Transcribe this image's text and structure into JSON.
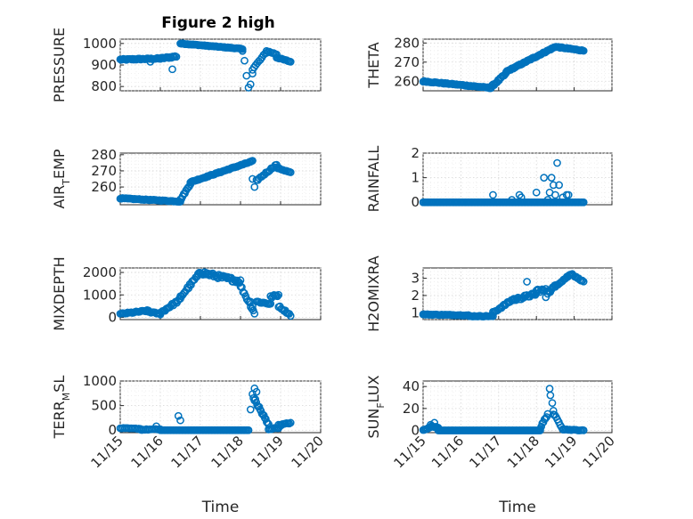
{
  "figure_title": "Figure 2 high",
  "x_tick_labels": [
    "11/15",
    "11/16",
    "11/17",
    "11/18",
    "11/19",
    "11/20"
  ],
  "colors": {
    "marker": "#0072bd",
    "axes": "#262626",
    "grid": "#d4d4d4"
  },
  "chart_data": [
    {
      "type": "scatter",
      "panel": "top-left",
      "ylabel": {
        "main": "PRESSURE",
        "sub": "",
        "tail": ""
      },
      "xlabel": "",
      "xlim": [
        0,
        5
      ],
      "ylim": [
        780,
        1020
      ],
      "yticks": [
        800,
        900,
        1000
      ],
      "ytick_labels": [
        "800",
        "900",
        "1000"
      ],
      "segments": [
        {
          "x0": 0.0,
          "x1": 1.0,
          "y0": 925,
          "y1": 930,
          "n": 40,
          "jitter": 6
        },
        {
          "x0": 1.0,
          "x1": 1.4,
          "y0": 930,
          "y1": 940,
          "n": 14,
          "jitter": 8
        },
        {
          "x0": 1.5,
          "x1": 3.05,
          "y0": 1000,
          "y1": 975,
          "n": 70,
          "jitter": 3
        },
        {
          "x0": 3.3,
          "x1": 3.65,
          "y0": 880,
          "y1": 960,
          "n": 10,
          "jitter": 10
        },
        {
          "x0": 3.65,
          "x1": 3.9,
          "y0": 965,
          "y1": 950,
          "n": 8,
          "jitter": 5
        },
        {
          "x0": 3.9,
          "x1": 4.25,
          "y0": 935,
          "y1": 915,
          "n": 12,
          "jitter": 4
        }
      ],
      "points": [
        {
          "x": 1.3,
          "y": 880
        },
        {
          "x": 0.75,
          "y": 915
        },
        {
          "x": 3.05,
          "y": 965
        },
        {
          "x": 3.1,
          "y": 920
        },
        {
          "x": 3.15,
          "y": 850
        },
        {
          "x": 3.2,
          "y": 795
        },
        {
          "x": 3.25,
          "y": 810
        },
        {
          "x": 3.3,
          "y": 860
        }
      ]
    },
    {
      "type": "scatter",
      "panel": "top-right",
      "ylabel": {
        "main": "THETA",
        "sub": "",
        "tail": ""
      },
      "xlabel": "",
      "xlim": [
        0,
        5
      ],
      "ylim": [
        255,
        282
      ],
      "yticks": [
        260,
        270,
        280
      ],
      "ytick_labels": [
        "260",
        "270",
        "280"
      ],
      "segments": [
        {
          "x0": 0.0,
          "x1": 1.8,
          "y0": 260,
          "y1": 256.5,
          "n": 60,
          "jitter": 0.5
        },
        {
          "x0": 1.8,
          "x1": 2.2,
          "y0": 257,
          "y1": 264,
          "n": 16,
          "jitter": 1
        },
        {
          "x0": 2.2,
          "x1": 3.5,
          "y0": 265,
          "y1": 278,
          "n": 55,
          "jitter": 0.6
        },
        {
          "x0": 3.5,
          "x1": 4.25,
          "y0": 278,
          "y1": 276,
          "n": 30,
          "jitter": 0.5
        }
      ],
      "points": []
    },
    {
      "type": "scatter",
      "panel": "row2-left",
      "ylabel": {
        "main": "AIR",
        "sub": "T",
        "tail": "EMP"
      },
      "xlabel": "",
      "xlim": [
        0,
        5
      ],
      "ylim": [
        249,
        281
      ],
      "yticks": [
        260,
        270,
        280
      ],
      "ytick_labels": [
        "260",
        "270",
        "280"
      ],
      "segments": [
        {
          "x0": 0.0,
          "x1": 1.5,
          "y0": 253,
          "y1": 251,
          "n": 55,
          "jitter": 0.5
        },
        {
          "x0": 1.5,
          "x1": 1.75,
          "y0": 252,
          "y1": 262,
          "n": 10,
          "jitter": 1
        },
        {
          "x0": 1.75,
          "x1": 3.3,
          "y0": 263,
          "y1": 276,
          "n": 60,
          "jitter": 0.6
        },
        {
          "x0": 3.4,
          "x1": 3.9,
          "y0": 264,
          "y1": 274,
          "n": 16,
          "jitter": 1
        },
        {
          "x0": 3.9,
          "x1": 4.25,
          "y0": 272,
          "y1": 269,
          "n": 12,
          "jitter": 0.6
        }
      ],
      "points": [
        {
          "x": 3.3,
          "y": 265
        },
        {
          "x": 3.35,
          "y": 260
        }
      ]
    },
    {
      "type": "scatter",
      "panel": "row2-right",
      "ylabel": {
        "main": "RAINFALL",
        "sub": "",
        "tail": ""
      },
      "xlabel": "",
      "xlim": [
        0,
        5
      ],
      "ylim": [
        -0.1,
        2
      ],
      "yticks": [
        0,
        1,
        2
      ],
      "ytick_labels": [
        "0",
        "1",
        "2"
      ],
      "segments": [
        {
          "x0": 0.0,
          "x1": 4.25,
          "y0": 0,
          "y1": 0,
          "n": 130,
          "jitter": 0
        }
      ],
      "points": [
        {
          "x": 1.85,
          "y": 0.3
        },
        {
          "x": 2.35,
          "y": 0.1
        },
        {
          "x": 2.55,
          "y": 0.3
        },
        {
          "x": 2.6,
          "y": 0.2
        },
        {
          "x": 3.0,
          "y": 0.4
        },
        {
          "x": 3.2,
          "y": 1.0
        },
        {
          "x": 3.3,
          "y": 0.1
        },
        {
          "x": 3.35,
          "y": 0.4
        },
        {
          "x": 3.4,
          "y": 1.0
        },
        {
          "x": 3.45,
          "y": 0.7
        },
        {
          "x": 3.5,
          "y": 0.3
        },
        {
          "x": 3.55,
          "y": 1.6
        },
        {
          "x": 3.6,
          "y": 0.7
        },
        {
          "x": 3.7,
          "y": 0.2
        },
        {
          "x": 3.8,
          "y": 0.3
        },
        {
          "x": 3.85,
          "y": 0.3
        }
      ]
    },
    {
      "type": "scatter",
      "panel": "row3-left",
      "ylabel": {
        "main": "MIXDEPTH",
        "sub": "",
        "tail": ""
      },
      "xlabel": "",
      "xlim": [
        0,
        5
      ],
      "ylim": [
        -100,
        2200
      ],
      "yticks": [
        0,
        1000,
        2000
      ],
      "ytick_labels": [
        "0",
        "1000",
        "2000"
      ],
      "segments": [
        {
          "x0": 0.0,
          "x1": 0.7,
          "y0": 150,
          "y1": 300,
          "n": 24,
          "jitter": 60
        },
        {
          "x0": 0.7,
          "x1": 1.0,
          "y0": 250,
          "y1": 150,
          "n": 10,
          "jitter": 60
        },
        {
          "x0": 1.0,
          "x1": 1.5,
          "y0": 200,
          "y1": 800,
          "n": 18,
          "jitter": 120
        },
        {
          "x0": 1.5,
          "x1": 2.0,
          "y0": 900,
          "y1": 2000,
          "n": 18,
          "jitter": 150
        },
        {
          "x0": 2.0,
          "x1": 3.0,
          "y0": 2000,
          "y1": 1600,
          "n": 40,
          "jitter": 180
        },
        {
          "x0": 3.0,
          "x1": 3.35,
          "y0": 1400,
          "y1": 200,
          "n": 12,
          "jitter": 150
        },
        {
          "x0": 3.4,
          "x1": 3.75,
          "y0": 700,
          "y1": 600,
          "n": 12,
          "jitter": 80
        },
        {
          "x0": 3.75,
          "x1": 3.95,
          "y0": 900,
          "y1": 1000,
          "n": 8,
          "jitter": 120
        },
        {
          "x0": 3.95,
          "x1": 4.25,
          "y0": 500,
          "y1": 100,
          "n": 10,
          "jitter": 80
        }
      ],
      "points": [
        {
          "x": 3.25,
          "y": 700
        },
        {
          "x": 3.3,
          "y": 500
        }
      ]
    },
    {
      "type": "scatter",
      "panel": "row3-right",
      "ylabel": {
        "main": "H2OMIXRA",
        "sub": "",
        "tail": ""
      },
      "xlabel": "",
      "xlim": [
        0,
        5
      ],
      "ylim": [
        0.6,
        3.6
      ],
      "yticks": [
        1,
        2,
        3
      ],
      "ytick_labels": [
        "1",
        "2",
        "3"
      ],
      "segments": [
        {
          "x0": 0.0,
          "x1": 1.2,
          "y0": 0.9,
          "y1": 0.85,
          "n": 40,
          "jitter": 0.04
        },
        {
          "x0": 1.2,
          "x1": 1.85,
          "y0": 0.8,
          "y1": 0.8,
          "n": 22,
          "jitter": 0.05
        },
        {
          "x0": 1.85,
          "x1": 2.4,
          "y0": 1.0,
          "y1": 1.8,
          "n": 18,
          "jitter": 0.12
        },
        {
          "x0": 2.4,
          "x1": 3.0,
          "y0": 1.75,
          "y1": 2.1,
          "n": 22,
          "jitter": 0.18
        },
        {
          "x0": 3.0,
          "x1": 3.4,
          "y0": 2.3,
          "y1": 2.3,
          "n": 14,
          "jitter": 0.2
        },
        {
          "x0": 3.4,
          "x1": 3.95,
          "y0": 2.4,
          "y1": 3.3,
          "n": 20,
          "jitter": 0.12
        },
        {
          "x0": 3.95,
          "x1": 4.25,
          "y0": 3.2,
          "y1": 2.8,
          "n": 10,
          "jitter": 0.06
        }
      ],
      "points": [
        {
          "x": 2.75,
          "y": 2.8
        },
        {
          "x": 3.25,
          "y": 1.9
        },
        {
          "x": 3.3,
          "y": 2.1
        },
        {
          "x": 3.5,
          "y": 2.5
        }
      ]
    },
    {
      "type": "scatter",
      "panel": "bottom-left",
      "ylabel": {
        "main": "TERR",
        "sub": "M",
        "tail": "SL"
      },
      "xlabel": "Time",
      "xlim": [
        0,
        5
      ],
      "ylim": [
        -50,
        1000
      ],
      "yticks": [
        0,
        500,
        1000
      ],
      "ytick_labels": [
        "0",
        "500",
        "1000"
      ],
      "segments": [
        {
          "x0": 0.0,
          "x1": 0.5,
          "y0": 40,
          "y1": 30,
          "n": 14,
          "jitter": 12
        },
        {
          "x0": 0.5,
          "x1": 1.0,
          "y0": 10,
          "y1": 20,
          "n": 14,
          "jitter": 15
        },
        {
          "x0": 1.0,
          "x1": 3.2,
          "y0": 0,
          "y1": 0,
          "n": 70,
          "jitter": 0
        },
        {
          "x0": 3.3,
          "x1": 3.7,
          "y0": 700,
          "y1": 100,
          "n": 18,
          "jitter": 80
        },
        {
          "x0": 3.7,
          "x1": 3.95,
          "y0": 20,
          "y1": 50,
          "n": 8,
          "jitter": 20
        },
        {
          "x0": 3.95,
          "x1": 4.25,
          "y0": 100,
          "y1": 150,
          "n": 10,
          "jitter": 25
        }
      ],
      "points": [
        {
          "x": 1.45,
          "y": 290
        },
        {
          "x": 1.5,
          "y": 200
        },
        {
          "x": 3.35,
          "y": 850
        },
        {
          "x": 3.4,
          "y": 780
        },
        {
          "x": 3.25,
          "y": 420
        },
        {
          "x": 0.9,
          "y": 80
        }
      ]
    },
    {
      "type": "scatter",
      "panel": "bottom-right",
      "ylabel": {
        "main": "SUN",
        "sub": "F",
        "tail": "LUX"
      },
      "xlabel": "Time",
      "xlim": [
        0,
        5
      ],
      "ylim": [
        -2,
        45
      ],
      "yticks": [
        0,
        20,
        40
      ],
      "ytick_labels": [
        "0",
        "20",
        "40"
      ],
      "segments": [
        {
          "x0": 0.0,
          "x1": 0.2,
          "y0": 0,
          "y1": 3,
          "n": 8,
          "jitter": 1
        },
        {
          "x0": 0.2,
          "x1": 0.4,
          "y0": 5,
          "y1": 2,
          "n": 8,
          "jitter": 1.5
        },
        {
          "x0": 0.4,
          "x1": 3.1,
          "y0": 0,
          "y1": 0,
          "n": 90,
          "jitter": 0
        },
        {
          "x0": 3.1,
          "x1": 3.3,
          "y0": 2,
          "y1": 15,
          "n": 8,
          "jitter": 2
        },
        {
          "x0": 3.45,
          "x1": 3.7,
          "y0": 15,
          "y1": 2,
          "n": 8,
          "jitter": 2
        },
        {
          "x0": 3.7,
          "x1": 4.25,
          "y0": 1,
          "y1": 0,
          "n": 16,
          "jitter": 0.6
        }
      ],
      "points": [
        {
          "x": 0.3,
          "y": 7
        },
        {
          "x": 3.35,
          "y": 38
        },
        {
          "x": 3.37,
          "y": 32
        },
        {
          "x": 3.42,
          "y": 25
        },
        {
          "x": 3.45,
          "y": 18
        }
      ]
    }
  ]
}
